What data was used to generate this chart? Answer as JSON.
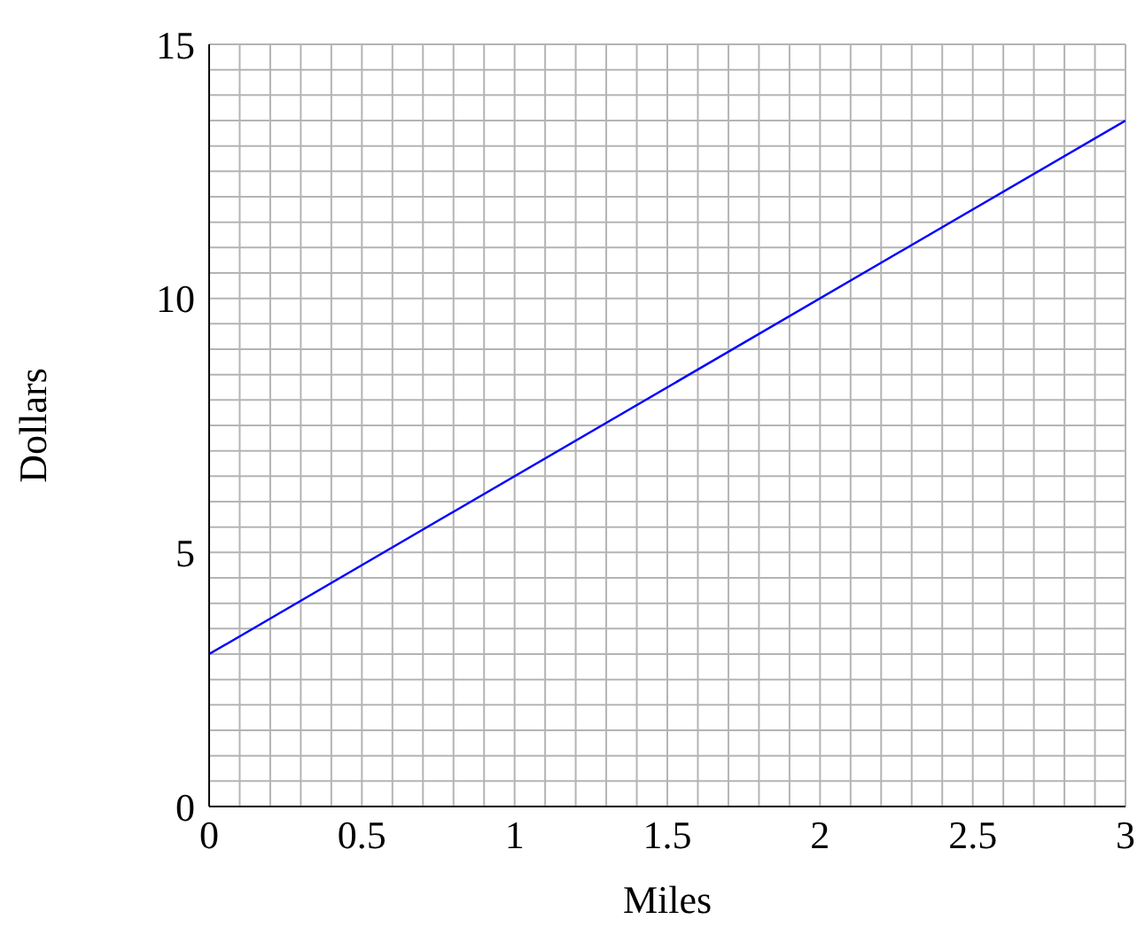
{
  "chart_data": {
    "type": "line",
    "xlabel": "Miles",
    "ylabel": "Dollars",
    "x": [
      0,
      3
    ],
    "series": [
      {
        "color": "#0000ff",
        "values": [
          3,
          13.5
        ]
      }
    ],
    "xlim": [
      0,
      3
    ],
    "ylim": [
      0,
      15
    ],
    "xticks": [
      0,
      {
        "value": 0.1,
        "label": null
      },
      {
        "value": 0.2,
        "label": null
      },
      {
        "value": 0.3,
        "label": null
      },
      {
        "value": 0.4,
        "label": null
      },
      0.5,
      {
        "value": 0.6,
        "label": null
      },
      {
        "value": 0.7,
        "label": null
      },
      {
        "value": 0.8,
        "label": null
      },
      {
        "value": 0.9,
        "label": null
      },
      1,
      {
        "value": 1.1,
        "label": null
      },
      {
        "value": 1.2,
        "label": null
      },
      {
        "value": 1.3,
        "label": null
      },
      {
        "value": 1.4,
        "label": null
      },
      1.5,
      {
        "value": 1.6,
        "label": null
      },
      {
        "value": 1.7,
        "label": null
      },
      {
        "value": 1.8,
        "label": null
      },
      {
        "value": 1.9,
        "label": null
      },
      2,
      {
        "value": 2.1,
        "label": null
      },
      {
        "value": 2.2,
        "label": null
      },
      {
        "value": 2.3,
        "label": null
      },
      {
        "value": 2.4,
        "label": null
      },
      2.5,
      {
        "value": 2.6,
        "label": null
      },
      {
        "value": 2.7,
        "label": null
      },
      {
        "value": 2.8,
        "label": null
      },
      {
        "value": 2.9,
        "label": null
      },
      3
    ],
    "yticks": [
      0,
      {
        "value": 0.5,
        "label": null
      },
      {
        "value": 1,
        "label": null
      },
      {
        "value": 1.5,
        "label": null
      },
      {
        "value": 2,
        "label": null
      },
      {
        "value": 2.5,
        "label": null
      },
      {
        "value": 3,
        "label": null
      },
      {
        "value": 3.5,
        "label": null
      },
      {
        "value": 4,
        "label": null
      },
      {
        "value": 4.5,
        "label": null
      },
      5,
      {
        "value": 5.5,
        "label": null
      },
      {
        "value": 6,
        "label": null
      },
      {
        "value": 6.5,
        "label": null
      },
      {
        "value": 7,
        "label": null
      },
      {
        "value": 7.5,
        "label": null
      },
      {
        "value": 8,
        "label": null
      },
      {
        "value": 8.5,
        "label": null
      },
      {
        "value": 9,
        "label": null
      },
      {
        "value": 9.5,
        "label": null
      },
      10,
      {
        "value": 10.5,
        "label": null
      },
      {
        "value": 11,
        "label": null
      },
      {
        "value": 11.5,
        "label": null
      },
      {
        "value": 12,
        "label": null
      },
      {
        "value": 12.5,
        "label": null
      },
      {
        "value": 13,
        "label": null
      },
      {
        "value": 13.5,
        "label": null
      },
      {
        "value": 14,
        "label": null
      },
      {
        "value": 14.5,
        "label": null
      },
      15
    ],
    "grid": true,
    "legend": false,
    "marker": "none",
    "line_style": "solid"
  }
}
